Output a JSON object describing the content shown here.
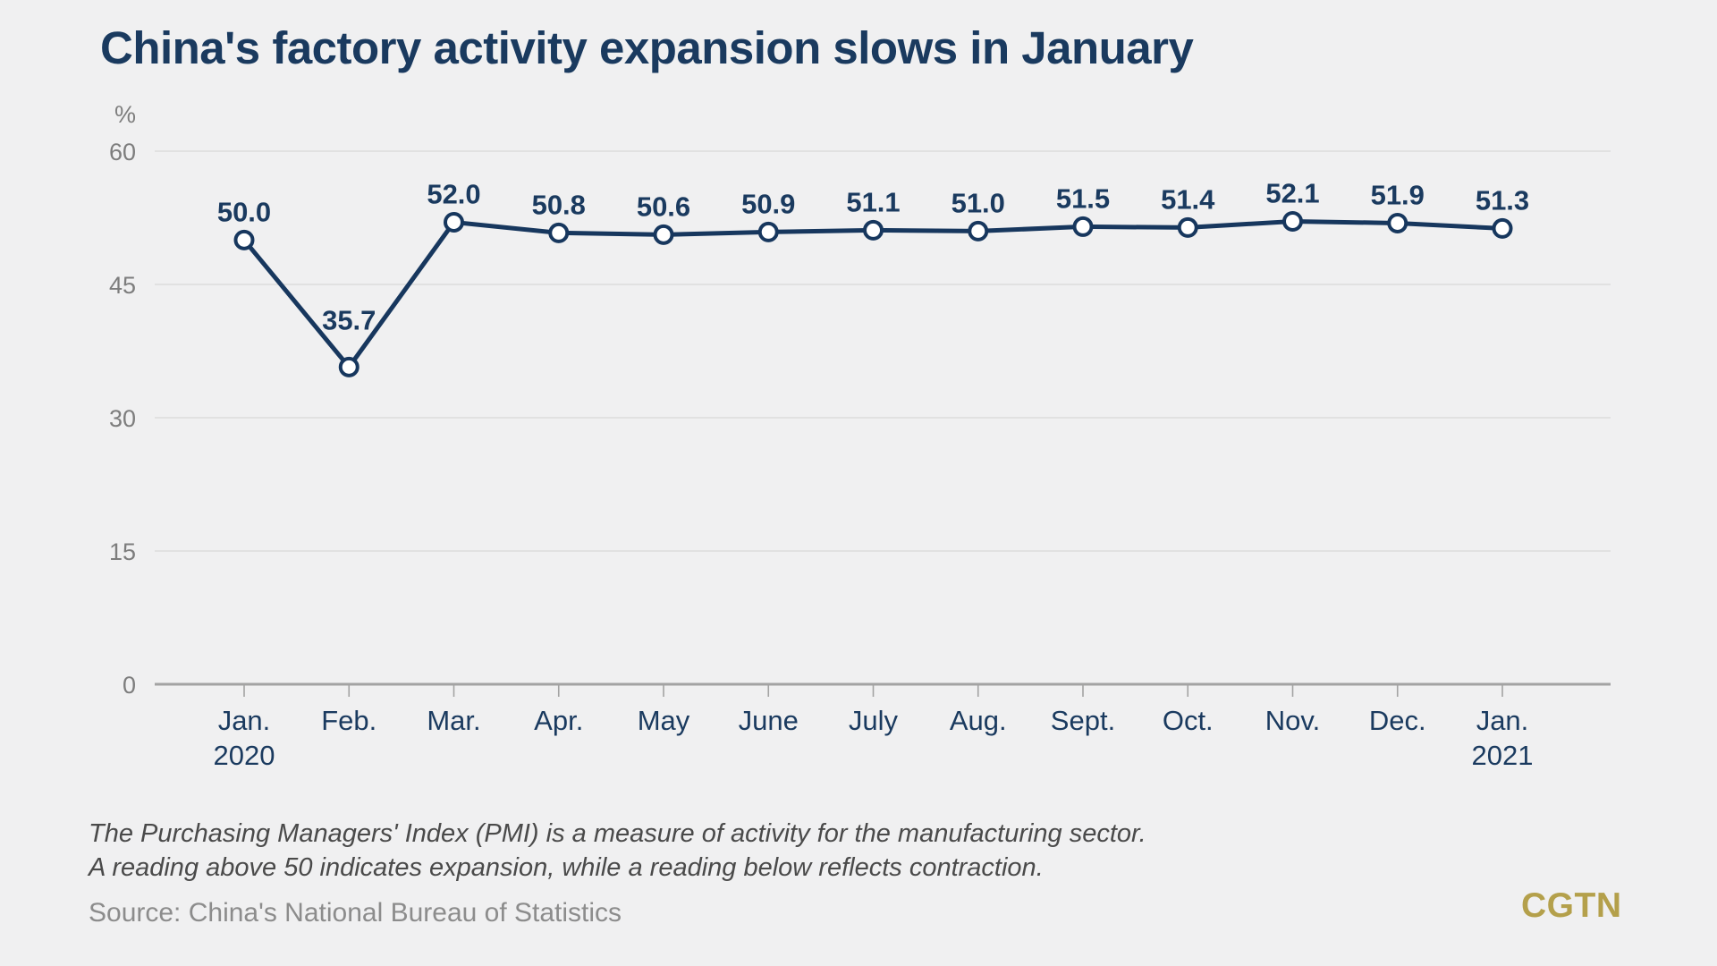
{
  "page": {
    "title": "China's factory activity expansion slows in January",
    "footnote_line1": "The Purchasing Managers' Index (PMI) is a measure of activity for the manufacturing sector.",
    "footnote_line2": "A reading above 50 indicates expansion, while a reading below reflects contraction.",
    "source": "Source: China's National Bureau of Statistics",
    "logo": "CGTN"
  },
  "colors": {
    "background": "#f0f0f1",
    "title_navy": "#1a3a5f",
    "line_navy": "#17375e",
    "marker_fill": "#ffffff",
    "axis_gray": "#a3a3a3",
    "gridline_gray": "#dcdcdc",
    "y_label_gray": "#7d7d7d",
    "footnote_gray": "#4a4a4a",
    "source_gray": "#8c8c8c",
    "logo_gold": "#b4a04b"
  },
  "chart_data": {
    "type": "line",
    "title": "China's factory activity expansion slows in January",
    "xlabel": "",
    "ylabel": "%",
    "categories": [
      "Jan.",
      "Feb.",
      "Mar.",
      "Apr.",
      "May",
      "June",
      "July",
      "Aug.",
      "Sept.",
      "Oct.",
      "Nov.",
      "Dec.",
      "Jan."
    ],
    "category_sublabels": [
      "2020",
      "",
      "",
      "",
      "",
      "",
      "",
      "",
      "",
      "",
      "",
      "",
      "2021"
    ],
    "series": [
      {
        "name": "Purchasing Managers' Index (PMI)",
        "values": [
          50.0,
          35.7,
          52.0,
          50.8,
          50.6,
          50.9,
          51.1,
          51.0,
          51.5,
          51.4,
          52.1,
          51.9,
          51.3
        ]
      }
    ],
    "ylim": [
      0,
      60
    ],
    "yticks": [
      0,
      15,
      30,
      45,
      60
    ],
    "grid": true,
    "legend": "none",
    "data_labels": true,
    "data_label_decimals": 1,
    "marker": "open-circle"
  }
}
